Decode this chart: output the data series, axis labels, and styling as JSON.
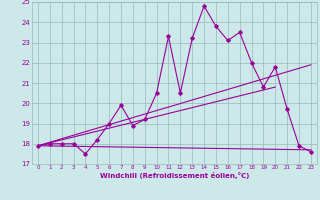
{
  "xlabel": "Windchill (Refroidissement éolien,°C)",
  "xlim": [
    -0.5,
    23.5
  ],
  "ylim": [
    17,
    25
  ],
  "xticks": [
    0,
    1,
    2,
    3,
    4,
    5,
    6,
    7,
    8,
    9,
    10,
    11,
    12,
    13,
    14,
    15,
    16,
    17,
    18,
    19,
    20,
    21,
    22,
    23
  ],
  "yticks": [
    17,
    18,
    19,
    20,
    21,
    22,
    23,
    24,
    25
  ],
  "bg_color": "#cce8e8",
  "line_color": "#990099",
  "grid_color": "#99bbbb",
  "series1_x": [
    0,
    1,
    2,
    3,
    4,
    5,
    6,
    7,
    8,
    9,
    10,
    11,
    12,
    13,
    14,
    15,
    16,
    17,
    18,
    19,
    20,
    21,
    22,
    23
  ],
  "series1_y": [
    17.9,
    18.0,
    18.0,
    18.0,
    17.5,
    18.2,
    19.0,
    19.9,
    18.9,
    19.2,
    20.5,
    23.3,
    20.5,
    23.2,
    24.8,
    23.8,
    23.1,
    23.5,
    22.0,
    20.8,
    21.8,
    19.7,
    17.9,
    17.6
  ],
  "series2_x": [
    0,
    23
  ],
  "series2_y": [
    17.9,
    21.9
  ],
  "series3_x": [
    0,
    20
  ],
  "series3_y": [
    17.9,
    20.8
  ],
  "series4_x": [
    0,
    23
  ],
  "series4_y": [
    17.9,
    17.7
  ]
}
